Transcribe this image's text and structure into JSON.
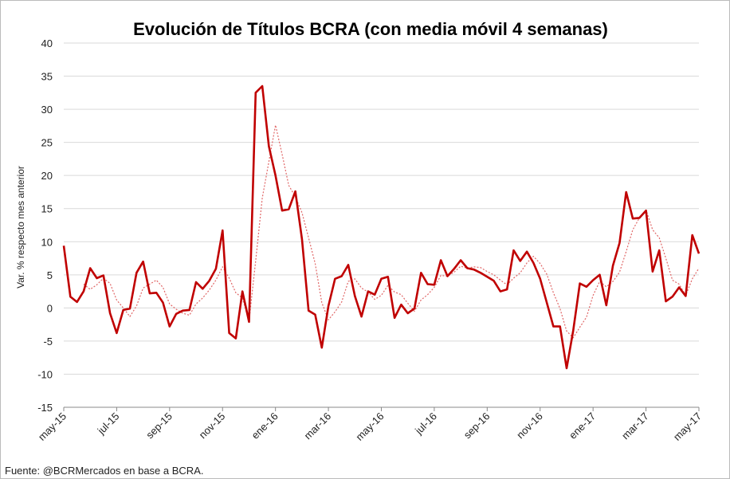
{
  "chart_data": {
    "type": "line",
    "title": "Evolución de Títulos BCRA (con media móvil 4 semanas)",
    "ylabel": "Var. % respecto mes anterior",
    "source": "Fuente: @BCRMercados en base a BCRA.",
    "categories": [
      "may-15",
      null,
      null,
      null,
      null,
      null,
      null,
      null,
      "jul-15",
      null,
      null,
      null,
      null,
      null,
      null,
      null,
      "sep-15",
      null,
      null,
      null,
      null,
      null,
      null,
      null,
      "nov-15",
      null,
      null,
      null,
      null,
      null,
      null,
      null,
      "ene-16",
      null,
      null,
      null,
      null,
      null,
      null,
      null,
      "mar-16",
      null,
      null,
      null,
      null,
      null,
      null,
      null,
      "may-16",
      null,
      null,
      null,
      null,
      null,
      null,
      null,
      "jul-16",
      null,
      null,
      null,
      null,
      null,
      null,
      null,
      "sep-16",
      null,
      null,
      null,
      null,
      null,
      null,
      null,
      "nov-16",
      null,
      null,
      null,
      null,
      null,
      null,
      null,
      "ene-17",
      null,
      null,
      null,
      null,
      null,
      null,
      null,
      "mar-17",
      null,
      null,
      null,
      null,
      null,
      null,
      null,
      "may-17"
    ],
    "series": [
      {
        "color": "#c00000",
        "style": "solid",
        "values": [
          9.4,
          1.7,
          0.9,
          2.5,
          6,
          4.5,
          4.9,
          -0.8,
          -3.8,
          -0.3,
          -0.1,
          5.3,
          7,
          2.2,
          2.3,
          0.8,
          -2.8,
          -0.9,
          -0.4,
          -0.3,
          3.9,
          2.9,
          4.1,
          5.9,
          11.7,
          -3.8,
          -4.6,
          2.5,
          -2.1,
          32.5,
          33.5,
          24.4,
          20,
          14.7,
          14.9,
          17.6,
          10.4,
          -0.4,
          -1,
          -6,
          0.3,
          4.4,
          4.8,
          6.5,
          1.8,
          -1.3,
          2.5,
          2,
          4.4,
          4.7,
          -1.5,
          0.5,
          -0.8,
          -0.1,
          5.3,
          3.6,
          3.5,
          7.2,
          4.8,
          5.9,
          7.2,
          6,
          5.8,
          5.3,
          4.7,
          4.1,
          2.5,
          2.8,
          8.7,
          7.1,
          8.5,
          6.8,
          4.4,
          0.8,
          -2.8,
          -2.8,
          -9.1,
          -3.4,
          3.7,
          3.2,
          4.2,
          5,
          0.4,
          6.4,
          9.8,
          17.5,
          13.5,
          13.6,
          14.7,
          5.5,
          8.7,
          1,
          1.7,
          3.1,
          1.8,
          11,
          8.2
        ]
      },
      {
        "color": "#e06666",
        "style": "dotted",
        "values": [
          null,
          null,
          null,
          3.6,
          2.8,
          3.5,
          4.5,
          3.7,
          1.2,
          0,
          -1.3,
          0.3,
          3,
          3.6,
          4.2,
          3.1,
          0.6,
          -0.2,
          -0.8,
          -1.1,
          0.6,
          1.5,
          2.7,
          4.2,
          6.2,
          4.5,
          2.3,
          1.5,
          -2,
          7.1,
          16.6,
          22.1,
          27.6,
          23.2,
          18.5,
          16.8,
          14.4,
          10.6,
          6.7,
          0.8,
          -1.8,
          -0.6,
          0.9,
          4,
          4.4,
          3,
          2.4,
          1.3,
          1.9,
          3.4,
          2.4,
          2,
          0.7,
          -0.5,
          1.2,
          2,
          3.1,
          4.9,
          4.8,
          5.4,
          6.3,
          6,
          6.2,
          6.1,
          5.5,
          5,
          4.2,
          3.5,
          4.5,
          5.3,
          6.8,
          7.8,
          6.7,
          5.1,
          2.3,
          -0.1,
          -3.5,
          -4.5,
          -2.9,
          -1.4,
          1.9,
          4,
          3.2,
          4,
          5.4,
          8.5,
          11.8,
          13.6,
          14.8,
          11.8,
          10.6,
          7.5,
          4.2,
          3.6,
          1.9,
          4.4,
          6
        ]
      }
    ],
    "ylim": [
      -15,
      40
    ],
    "yticks": [
      -15,
      -10,
      -5,
      0,
      5,
      10,
      15,
      20,
      25,
      30,
      35,
      40
    ],
    "grid": true
  }
}
